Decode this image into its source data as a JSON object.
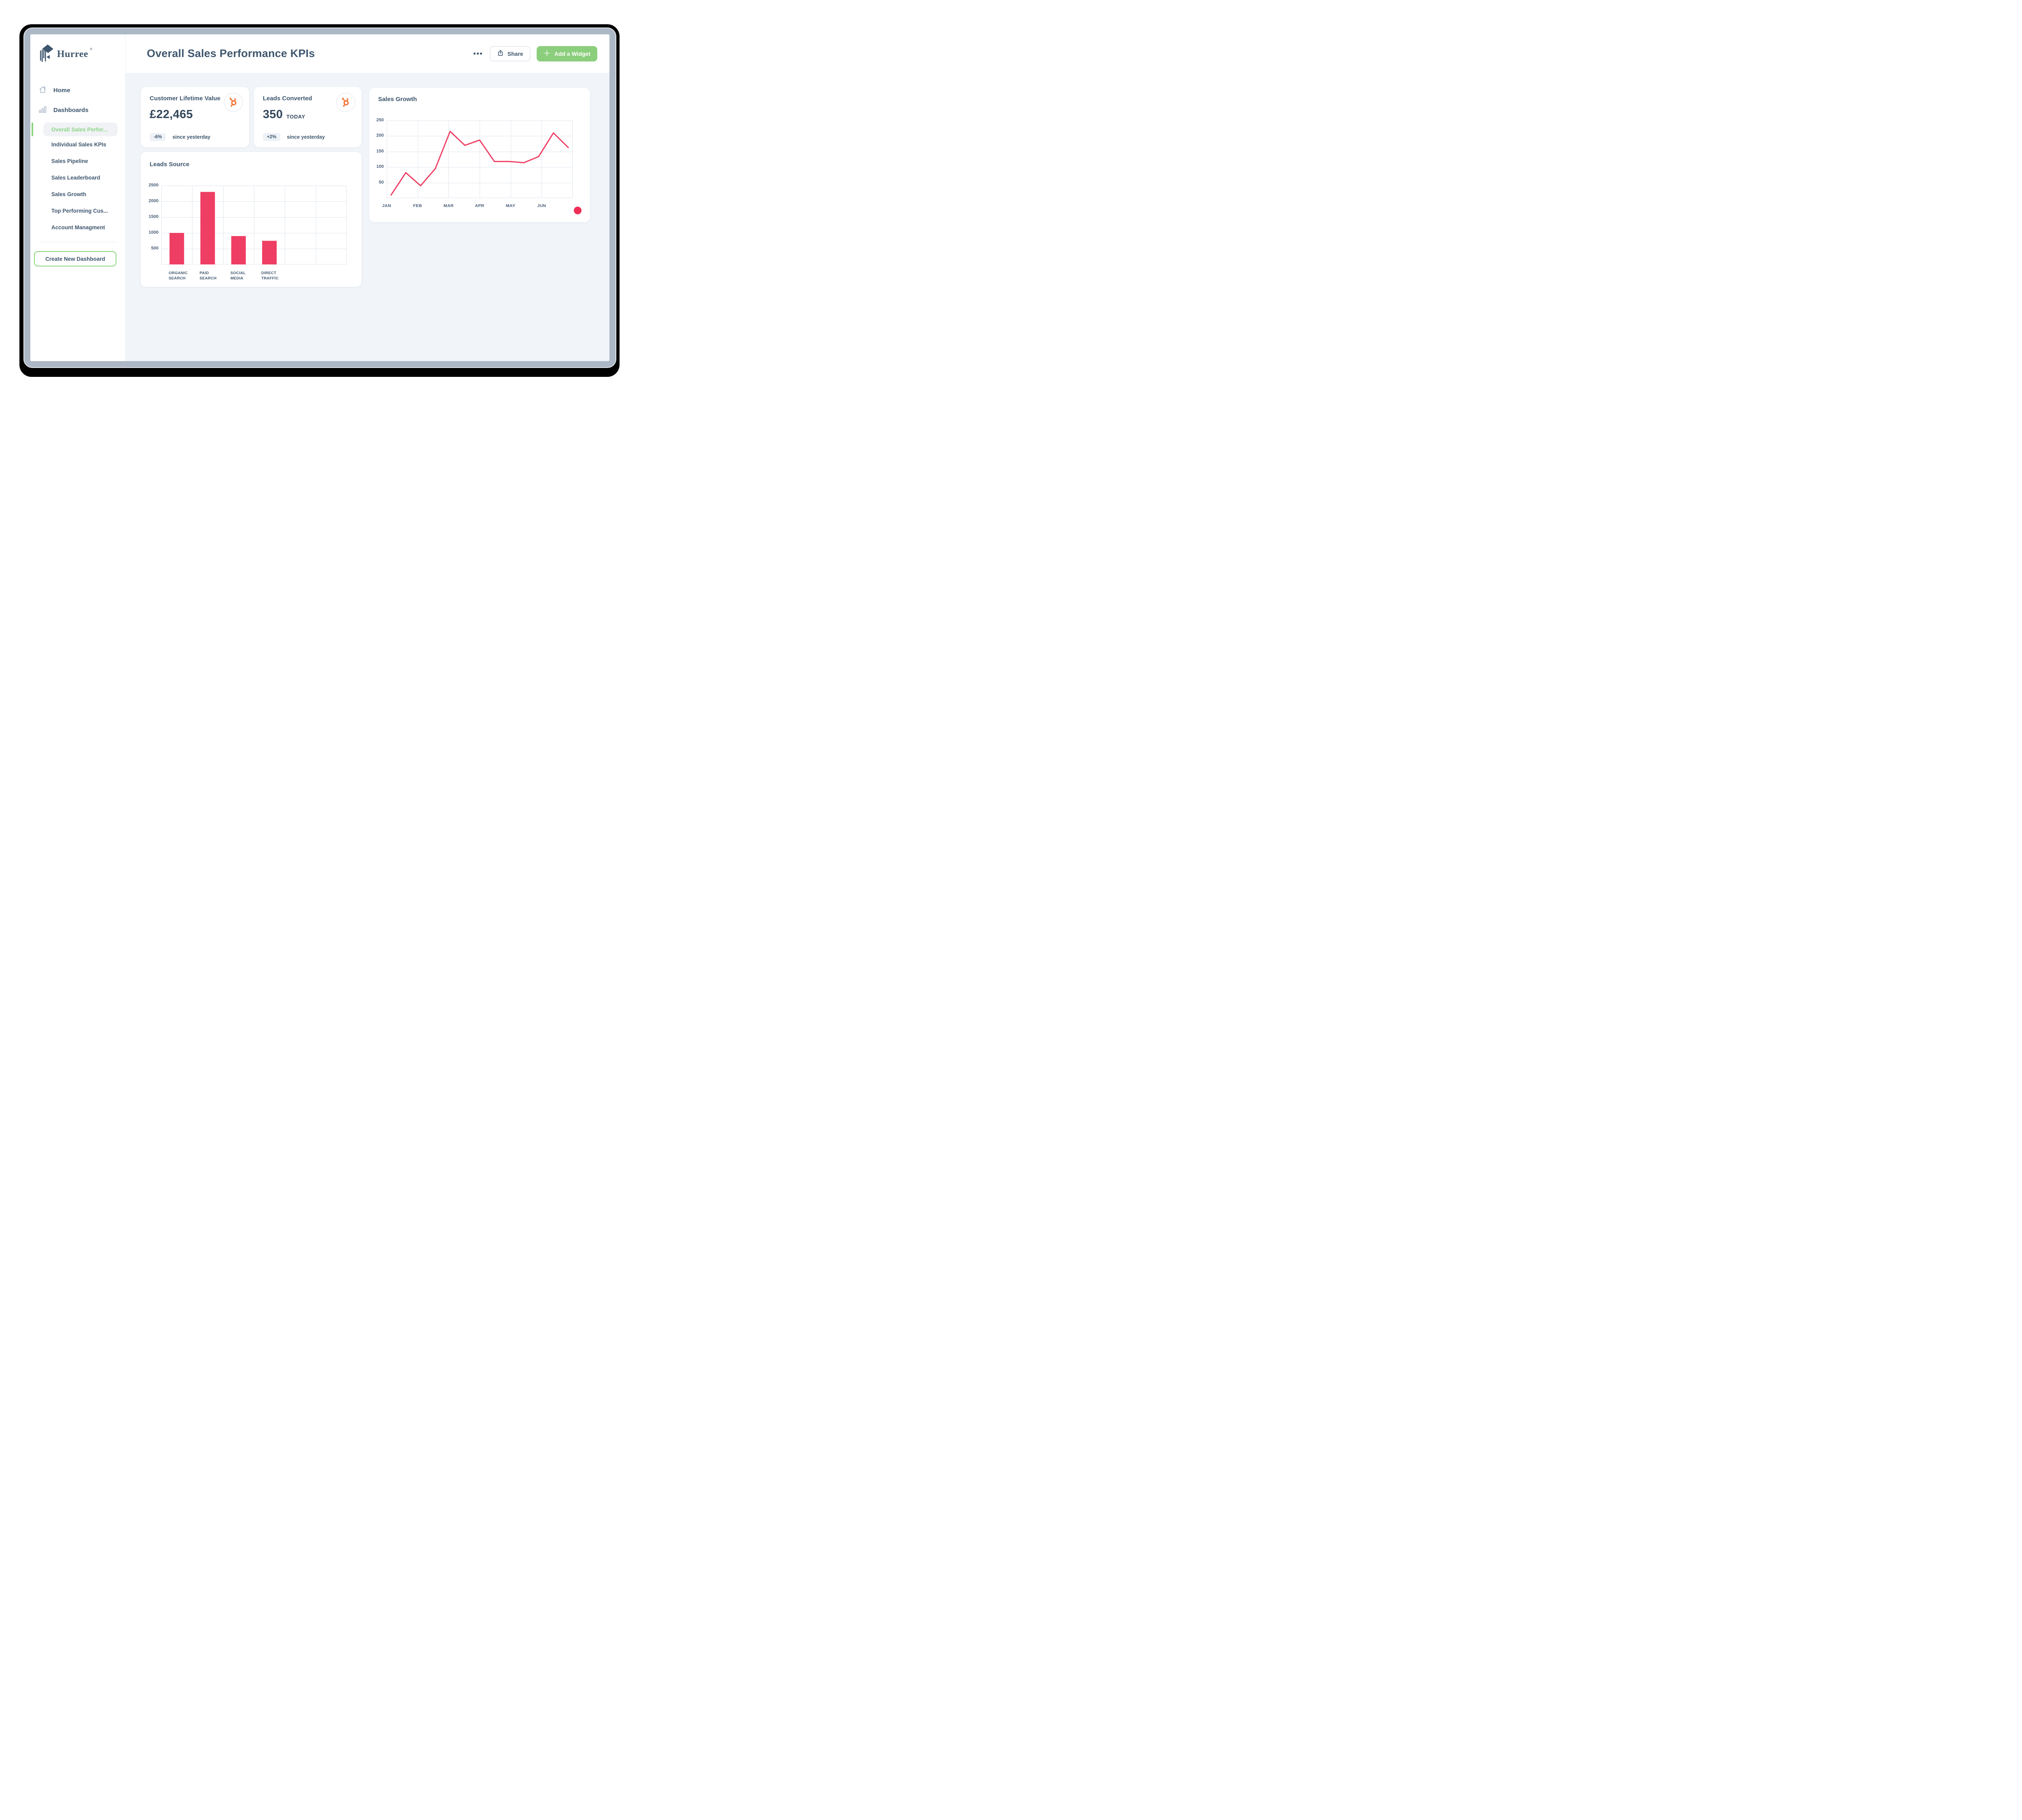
{
  "sidebar": {
    "brand": {
      "name": "Hurree",
      "registered_mark": "®"
    },
    "items": [
      {
        "label": "Home",
        "icon": "home-icon"
      },
      {
        "label": "Dashboards",
        "icon": "bar-chart-icon"
      }
    ],
    "sub_items": [
      "Overall Sales Perfor...",
      "Individual Sales KPIs",
      "Sales Pipeline",
      "Sales Leaderboard",
      "Sales Growth",
      "Top Performing Cus...",
      "Account Managment"
    ],
    "selected_sub_item": "Overall Sales Perfor...",
    "create_button_label": "Create New Dashboard"
  },
  "header": {
    "title": "Overall Sales Performance KPIs",
    "share_label": "Share",
    "add_widget_label": "Add a Widget",
    "more_options_icon": "horizontal-ellipsis"
  },
  "kpi_cards": [
    {
      "title": "Customer Lifetime Value",
      "value": "£22,465",
      "badge": "-6%",
      "badge_note": "since yesterday",
      "icon": "hubspot-sprocket-icon"
    },
    {
      "title": "Leads Converted",
      "value": "350",
      "value_suffix": "TODAY",
      "badge": "+2%",
      "badge_note": "since yesterday",
      "icon": "hubspot-sprocket-icon"
    }
  ],
  "chart_data": [
    {
      "type": "bar",
      "title": "Leads Source",
      "categories": [
        [
          "ORGANIC",
          "SEARCH"
        ],
        [
          "PAID",
          "SEARCH"
        ],
        [
          "SOCIAL",
          "MEDIA"
        ],
        [
          "DIRECT",
          "TRAFFIC"
        ]
      ],
      "values": [
        1000,
        2300,
        900,
        750
      ],
      "ylim": [
        0,
        2500
      ],
      "yticks": [
        500,
        1000,
        1500,
        2000,
        2500
      ],
      "n_columns": 6,
      "grid": true,
      "bar_color": "#EF3E63"
    },
    {
      "type": "line",
      "title": "Sales Growth",
      "x_labels": [
        "JAN",
        "FEB",
        "MAR",
        "APR",
        "MAY",
        "JUN"
      ],
      "values": [
        10,
        82,
        40,
        95,
        215,
        170,
        187,
        118,
        118,
        114,
        134,
        210,
        163
      ],
      "ylim": [
        0,
        250
      ],
      "yticks": [
        50,
        100,
        150,
        200,
        250
      ],
      "n_columns": 6,
      "grid": true,
      "line_color": "#EF3E63",
      "accent_dot_color": "#ED2E55"
    }
  ],
  "colors": {
    "slate_text": "#3E566E",
    "accent_green": "#8BCE7C",
    "accent_green_text": "#8CD687",
    "accent_green_border": "#8CD47E",
    "accent_pink": "#EF3E63",
    "accent_dot": "#ED2E55",
    "hubspot_orange": "#F3793B",
    "bezel_gray": "#ACB8C6",
    "content_background": "#F1F5F9",
    "badge_background": "#EEF2F7",
    "grid_line": "#DFE5EC"
  }
}
